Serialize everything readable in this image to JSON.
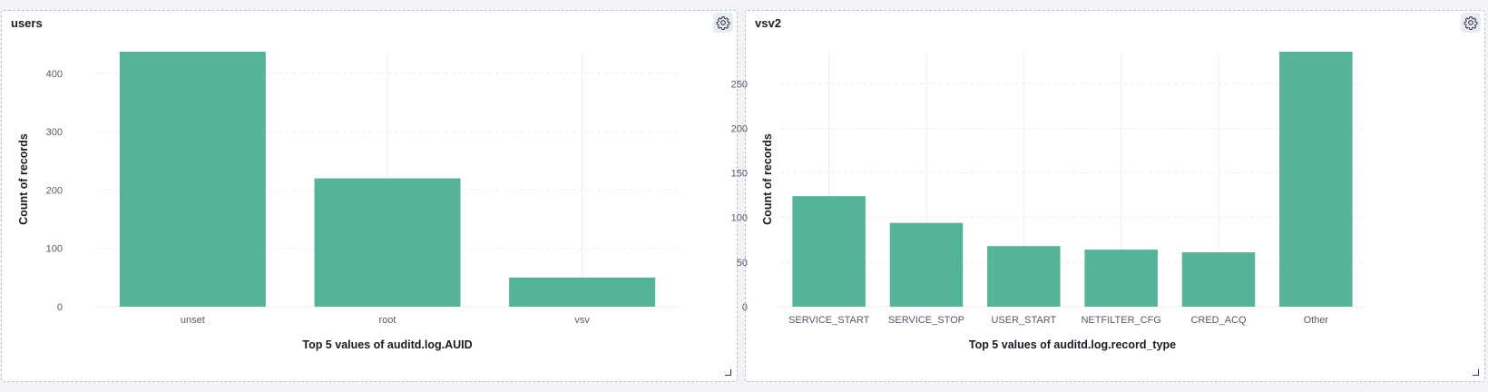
{
  "colors": {
    "bar": "#54b399",
    "grid": "#eceef2"
  },
  "panels": [
    {
      "title": "users",
      "settings_icon": "gear-icon",
      "chart_data": {
        "type": "bar",
        "categories": [
          "unset",
          "root",
          "vsv"
        ],
        "values": [
          437,
          220,
          50
        ],
        "xlabel": "Top 5 values of auditd.log.AUID",
        "ylabel": "Count of records",
        "ylim": [
          0,
          437
        ],
        "yticks": [
          0,
          100,
          200,
          300,
          400
        ],
        "grid": true
      }
    },
    {
      "title": "vsv2",
      "settings_icon": "gear-icon",
      "chart_data": {
        "type": "bar",
        "categories": [
          "SERVICE_START",
          "SERVICE_STOP",
          "USER_START",
          "NETFILTER_CFG",
          "CRED_ACQ",
          "Other"
        ],
        "values": [
          124,
          94,
          68,
          64,
          61,
          286
        ],
        "xlabel": "Top 5 values of auditd.log.record_type",
        "ylabel": "Count of records",
        "ylim": [
          0,
          286
        ],
        "yticks": [
          0,
          50,
          100,
          150,
          200,
          250
        ],
        "grid": true
      }
    }
  ]
}
